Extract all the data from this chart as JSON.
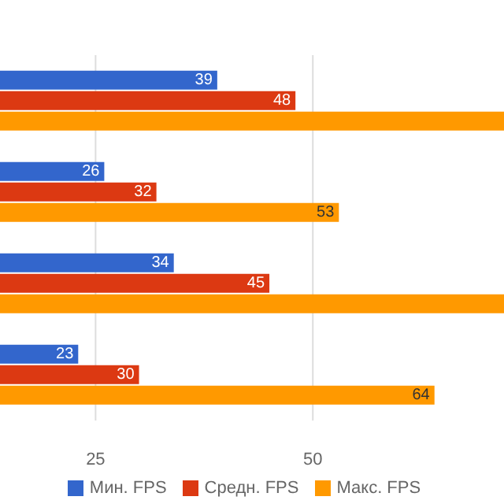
{
  "chart_data": {
    "type": "bar",
    "orientation": "horizontal",
    "categories": [
      null,
      null,
      null,
      null
    ],
    "series": [
      {
        "name": "Мин. FPS",
        "color": "#3366cc",
        "values": [
          39,
          26,
          34,
          23
        ],
        "value_labels": [
          "39",
          "26",
          "34",
          "23"
        ]
      },
      {
        "name": "Средн. FPS",
        "color": "#dc3912",
        "values": [
          48,
          32,
          45,
          30
        ],
        "value_labels": [
          "48",
          "32",
          "45",
          "30"
        ]
      },
      {
        "name": "Макс. FPS",
        "color": "#ff9900",
        "values": [
          72,
          53,
          72,
          64
        ],
        "value_labels": [
          null,
          "53",
          null,
          "64"
        ]
      }
    ],
    "xlim": [
      14,
      72
    ],
    "xticks": [
      25,
      50
    ],
    "grid": "x",
    "legend": "bottom"
  }
}
